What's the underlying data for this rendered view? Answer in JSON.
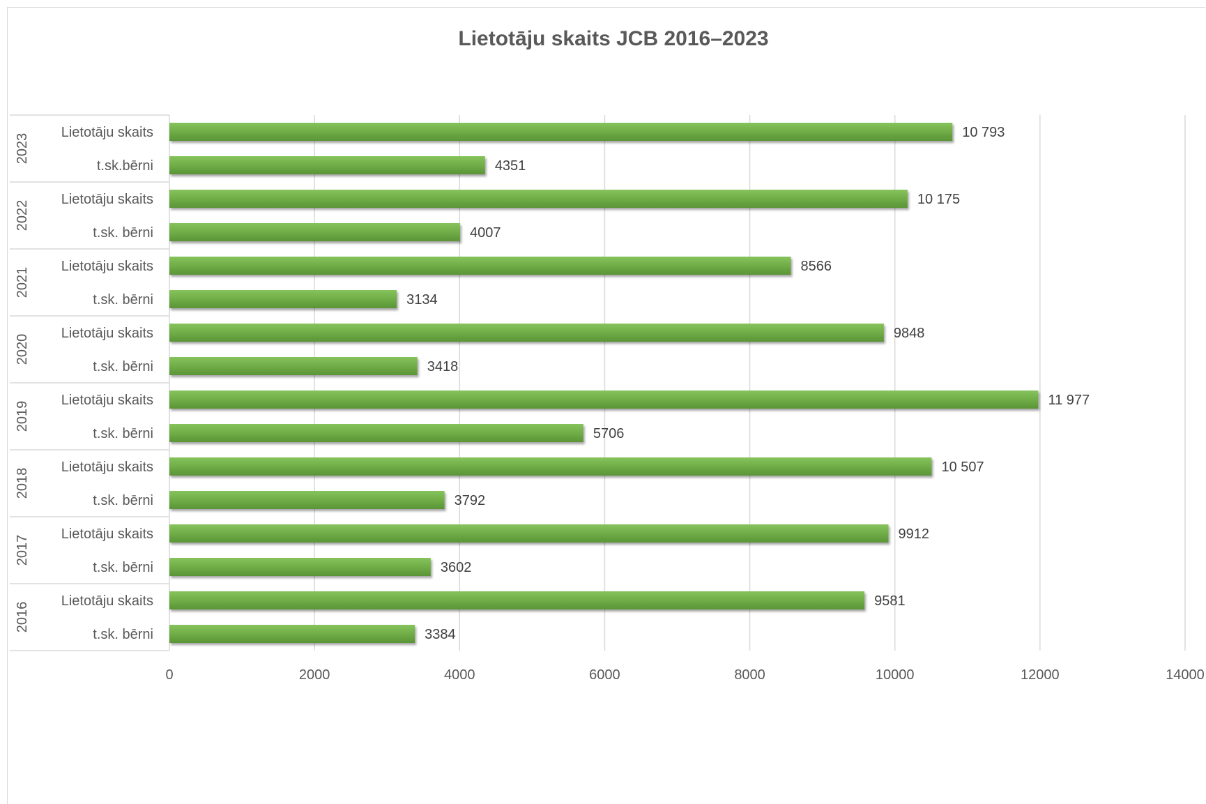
{
  "chart_data": {
    "type": "bar",
    "orientation": "horizontal",
    "title": "Lietotāju skaits JCB 2016–2023",
    "xlabel": "",
    "ylabel": "",
    "xlim": [
      0,
      14000
    ],
    "x_ticks": [
      "0",
      "2000",
      "4000",
      "6000",
      "8000",
      "10000",
      "12000",
      "14000"
    ],
    "grid": true,
    "legend": "none",
    "bar_color": "#70ad47",
    "groups": [
      {
        "year": "2023",
        "bars": [
          {
            "label": "Lietotāju skaits",
            "value": 10793,
            "value_label": "10 793"
          },
          {
            "label": "t.sk.bērni",
            "value": 4351,
            "value_label": "4351"
          }
        ]
      },
      {
        "year": "2022",
        "bars": [
          {
            "label": "Lietotāju skaits",
            "value": 10175,
            "value_label": "10 175"
          },
          {
            "label": "t.sk. bērni",
            "value": 4007,
            "value_label": "4007"
          }
        ]
      },
      {
        "year": "2021",
        "bars": [
          {
            "label": "Lietotāju skaits",
            "value": 8566,
            "value_label": "8566"
          },
          {
            "label": "t.sk. bērni",
            "value": 3134,
            "value_label": "3134"
          }
        ]
      },
      {
        "year": "2020",
        "bars": [
          {
            "label": "Lietotāju skaits",
            "value": 9848,
            "value_label": "9848"
          },
          {
            "label": "t.sk. bērni",
            "value": 3418,
            "value_label": "3418"
          }
        ]
      },
      {
        "year": "2019",
        "bars": [
          {
            "label": "Lietotāju skaits",
            "value": 11977,
            "value_label": "11 977"
          },
          {
            "label": "t.sk. bērni",
            "value": 5706,
            "value_label": "5706"
          }
        ]
      },
      {
        "year": "2018",
        "bars": [
          {
            "label": "Lietotāju skaits",
            "value": 10507,
            "value_label": "10 507"
          },
          {
            "label": "t.sk. bērni",
            "value": 3792,
            "value_label": "3792"
          }
        ]
      },
      {
        "year": "2017",
        "bars": [
          {
            "label": "Lietotāju skaits",
            "value": 9912,
            "value_label": "9912"
          },
          {
            "label": "t.sk. bērni",
            "value": 3602,
            "value_label": "3602"
          }
        ]
      },
      {
        "year": "2016",
        "bars": [
          {
            "label": "Lietotāju skaits",
            "value": 9581,
            "value_label": "9581"
          },
          {
            "label": "t.sk. bērni",
            "value": 3384,
            "value_label": "3384"
          }
        ]
      }
    ]
  }
}
